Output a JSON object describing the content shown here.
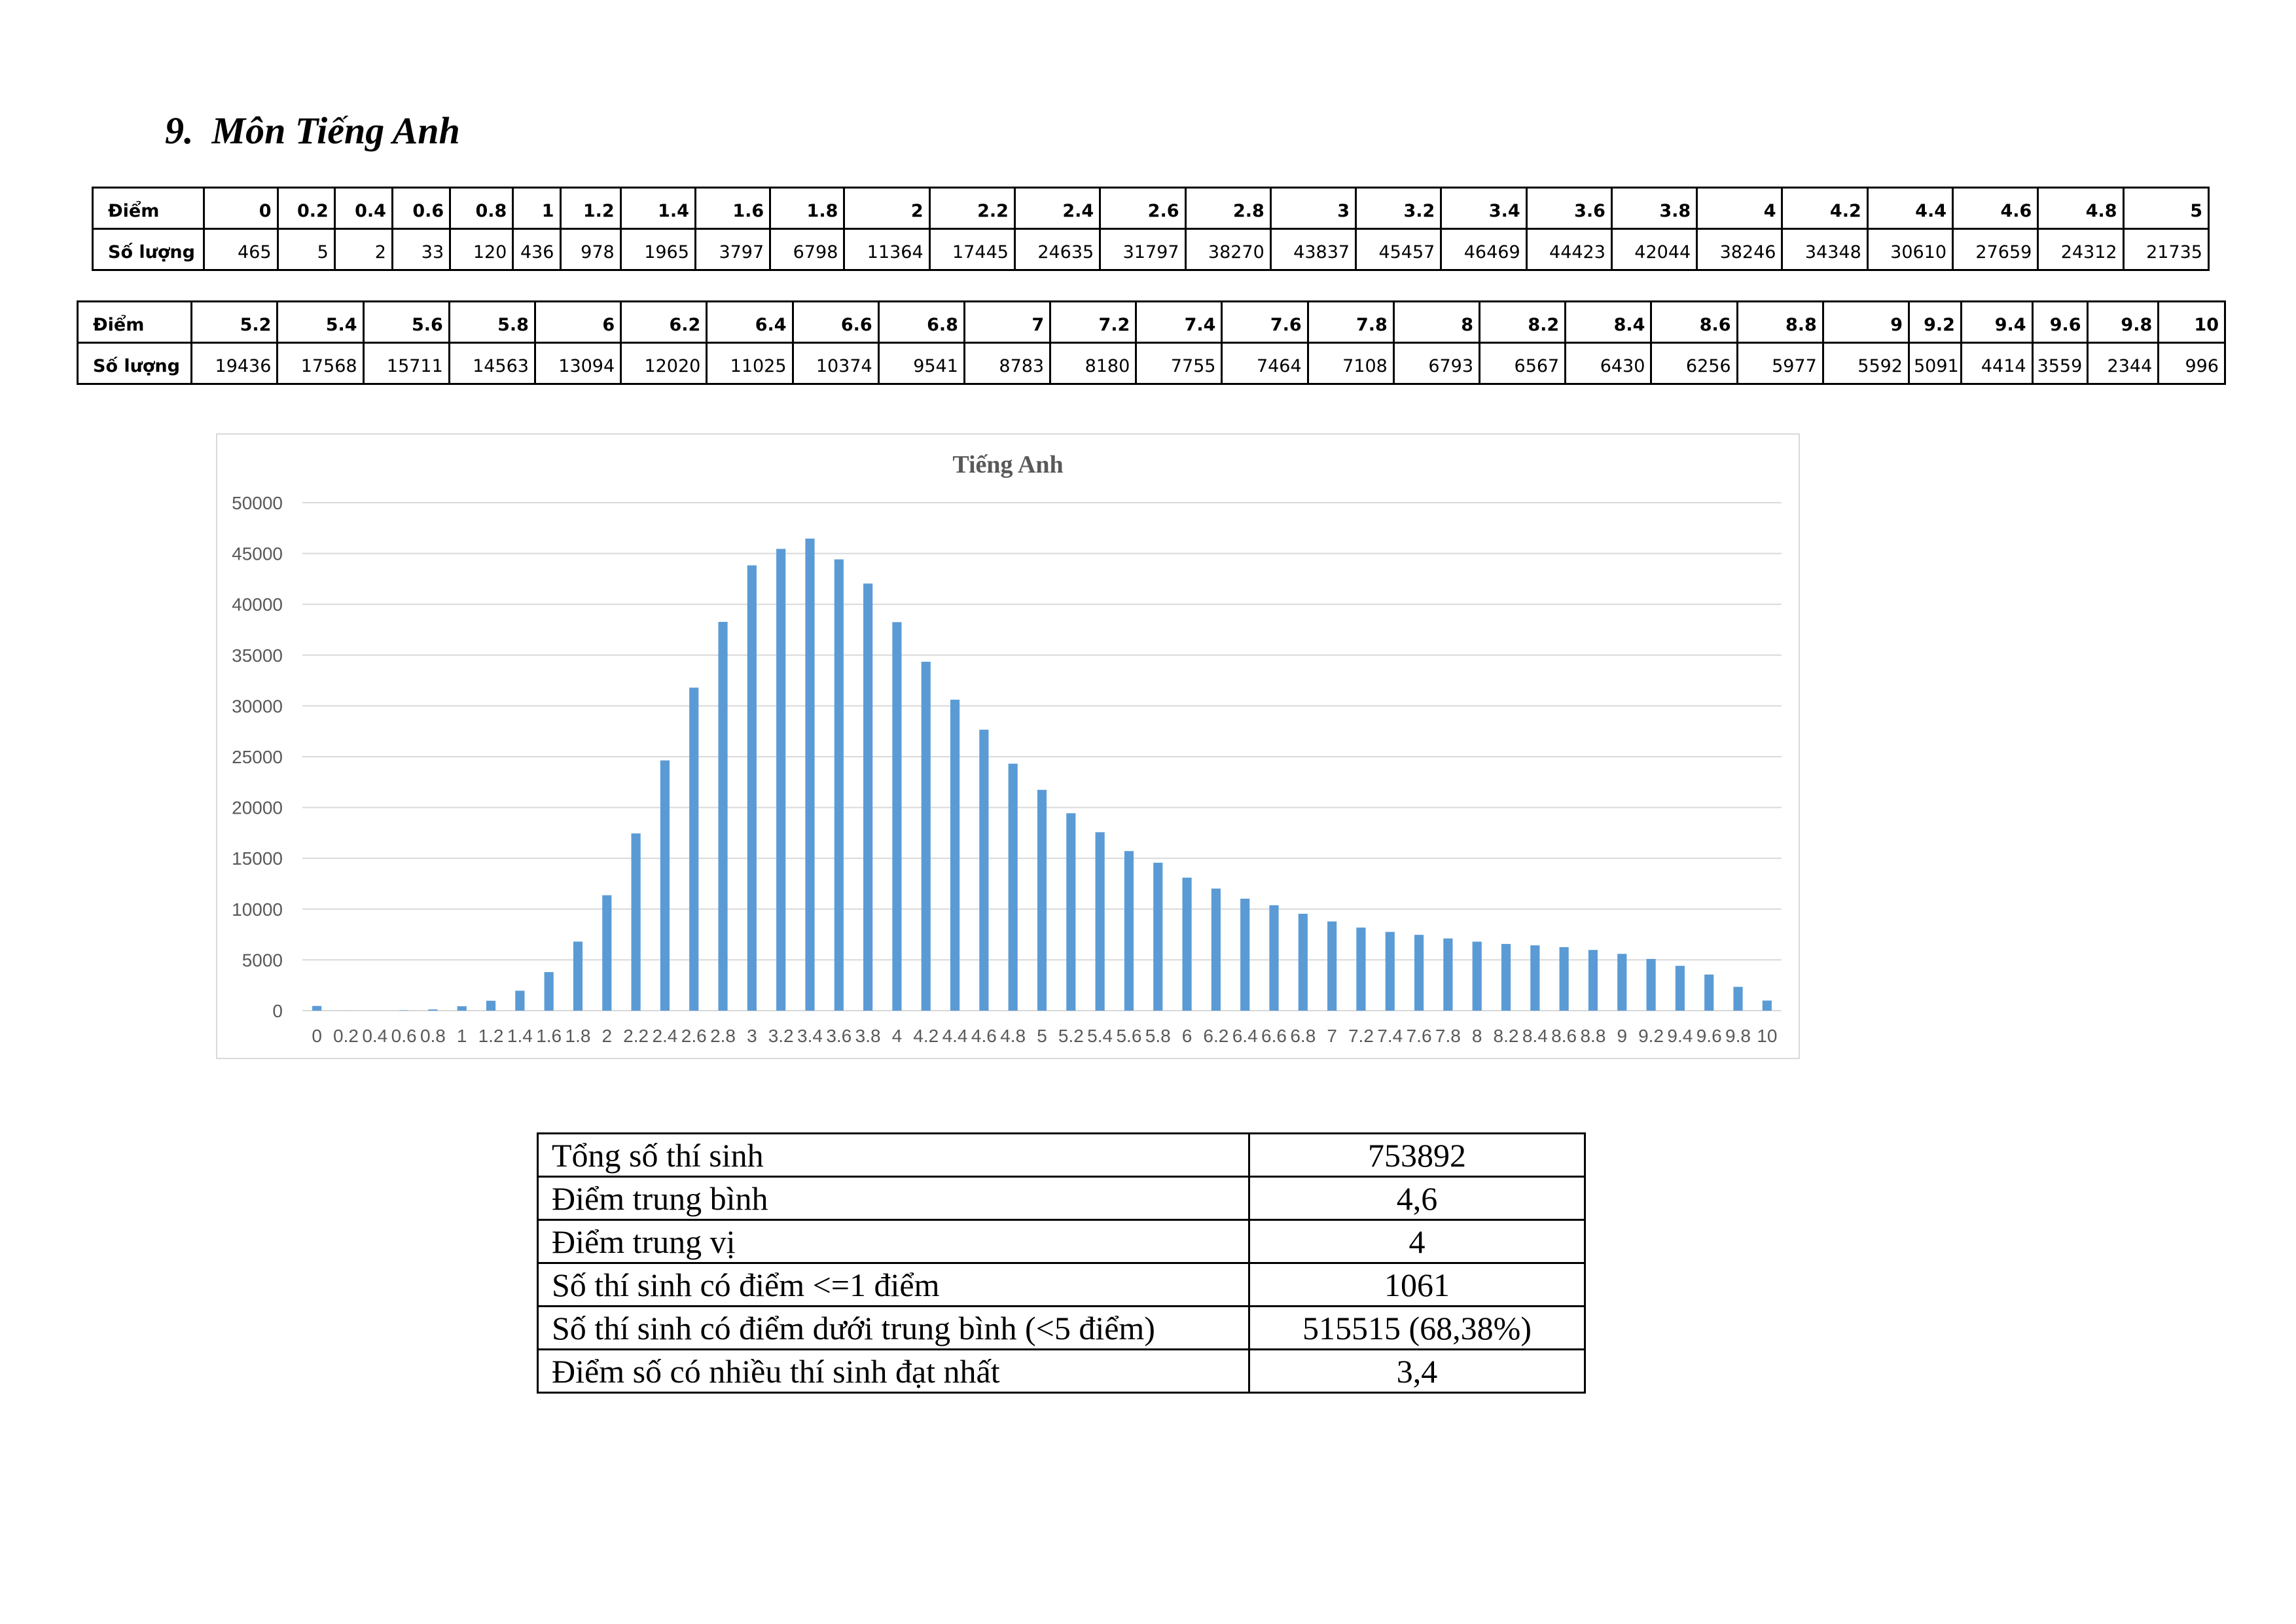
{
  "section": {
    "number": "9.",
    "title": "Môn Tiếng Anh"
  },
  "score_tables": [
    {
      "score_label": "Điểm",
      "count_label": "Số lượng",
      "scores": [
        "0",
        "0.2",
        "0.4",
        "0.6",
        "0.8",
        "1",
        "1.2",
        "1.4",
        "1.6",
        "1.8",
        "2",
        "2.2",
        "2.4",
        "2.6",
        "2.8",
        "3",
        "3.2",
        "3.4",
        "3.6",
        "3.8",
        "4",
        "4.2",
        "4.4",
        "4.6",
        "4.8",
        "5"
      ],
      "counts": [
        "465",
        "5",
        "2",
        "33",
        "120",
        "436",
        "978",
        "1965",
        "3797",
        "6798",
        "11364",
        "17445",
        "24635",
        "31797",
        "38270",
        "43837",
        "45457",
        "46469",
        "44423",
        "42044",
        "38246",
        "34348",
        "30610",
        "27659",
        "24312",
        "21735"
      ]
    },
    {
      "score_label": "Điểm",
      "count_label": "Số lượng",
      "scores": [
        "5.2",
        "5.4",
        "5.6",
        "5.8",
        "6",
        "6.2",
        "6.4",
        "6.6",
        "6.8",
        "7",
        "7.2",
        "7.4",
        "7.6",
        "7.8",
        "8",
        "8.2",
        "8.4",
        "8.6",
        "8.8",
        "9",
        "9.2",
        "9.4",
        "9.6",
        "9.8",
        "10"
      ],
      "counts": [
        "19436",
        "17568",
        "15711",
        "14563",
        "13094",
        "12020",
        "11025",
        "10374",
        "9541",
        "8783",
        "8180",
        "7755",
        "7464",
        "7108",
        "6793",
        "6567",
        "6430",
        "6256",
        "5977",
        "5592",
        "5091",
        "4414",
        "3559",
        "2344",
        "996"
      ]
    }
  ],
  "chart_data": {
    "type": "bar",
    "title": "Tiếng Anh",
    "xlabel": "",
    "ylabel": "",
    "categories": [
      "0",
      "0.2",
      "0.4",
      "0.6",
      "0.8",
      "1",
      "1.2",
      "1.4",
      "1.6",
      "1.8",
      "2",
      "2.2",
      "2.4",
      "2.6",
      "2.8",
      "3",
      "3.2",
      "3.4",
      "3.6",
      "3.8",
      "4",
      "4.2",
      "4.4",
      "4.6",
      "4.8",
      "5",
      "5.2",
      "5.4",
      "5.6",
      "5.8",
      "6",
      "6.2",
      "6.4",
      "6.6",
      "6.8",
      "7",
      "7.2",
      "7.4",
      "7.6",
      "7.8",
      "8",
      "8.2",
      "8.4",
      "8.6",
      "8.8",
      "9",
      "9.2",
      "9.4",
      "9.6",
      "9.8",
      "10"
    ],
    "values": [
      465,
      5,
      2,
      33,
      120,
      436,
      978,
      1965,
      3797,
      6798,
      11364,
      17445,
      24635,
      31797,
      38270,
      43837,
      45457,
      46469,
      44423,
      42044,
      38246,
      34348,
      30610,
      27659,
      24312,
      21735,
      19436,
      17568,
      15711,
      14563,
      13094,
      12020,
      11025,
      10374,
      9541,
      8783,
      8180,
      7755,
      7464,
      7108,
      6793,
      6567,
      6430,
      6256,
      5977,
      5592,
      5091,
      4414,
      3559,
      2344,
      996
    ],
    "ylim": [
      0,
      50000
    ],
    "yticks": [
      "0",
      "5000",
      "10000",
      "15000",
      "20000",
      "25000",
      "30000",
      "35000",
      "40000",
      "45000",
      "50000"
    ],
    "grid": true,
    "legend": "none",
    "bar_color": "#5b9bd5",
    "grid_color": "#d9d9d9"
  },
  "summary": [
    {
      "label": "Tổng số thí sinh",
      "value": "753892"
    },
    {
      "label": "Điểm trung bình",
      "value": "4,6"
    },
    {
      "label": "Điểm trung vị",
      "value": "4"
    },
    {
      "label": "Số thí sinh có điểm <=1 điểm",
      "value": "1061"
    },
    {
      "label": "Số thí sinh có điểm dưới trung bình (<5 điểm)",
      "value": "515515 (68,38%)"
    },
    {
      "label": "Điểm số có nhiều thí sinh đạt nhất",
      "value": "3,4"
    }
  ]
}
